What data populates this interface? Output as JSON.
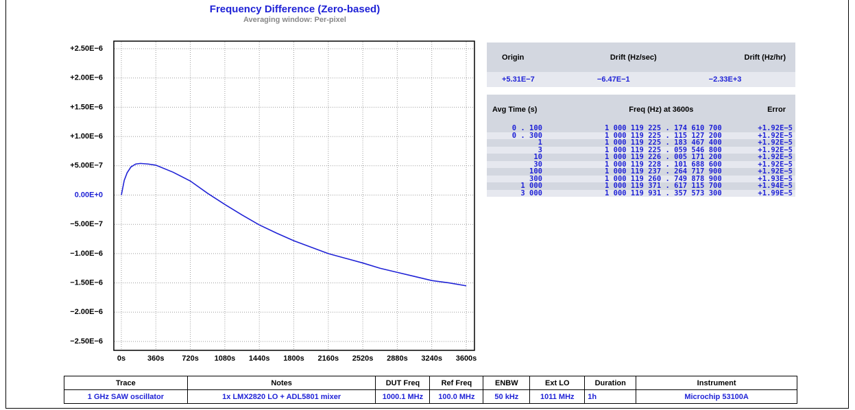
{
  "chart_data": {
    "type": "line",
    "title": "Frequency Difference (Zero-based)",
    "subtitle": "Averaging window: Per-pixel",
    "x": [
      0,
      30,
      60,
      100,
      150,
      200,
      280,
      360,
      540,
      720,
      900,
      1080,
      1260,
      1440,
      1620,
      1800,
      1980,
      2160,
      2340,
      2520,
      2700,
      2880,
      3060,
      3240,
      3420,
      3600
    ],
    "series": [
      {
        "color": "#1f22d6",
        "values": [
          0,
          2.5e-07,
          3.8e-07,
          4.8e-07,
          5.3e-07,
          5.4e-07,
          5.3e-07,
          5.1e-07,
          3.9e-07,
          2.4e-07,
          3e-08,
          -1.6e-07,
          -3.4e-07,
          -5.1e-07,
          -6.5e-07,
          -7.8e-07,
          -8.9e-07,
          -1e-06,
          -1.08e-06,
          -1.16e-06,
          -1.25e-06,
          -1.32e-06,
          -1.39e-06,
          -1.46e-06,
          -1.5e-06,
          -1.55e-06
        ]
      }
    ],
    "xlim": [
      0,
      3600
    ],
    "xticks": [
      {
        "value": 0,
        "label": "0s"
      },
      {
        "value": 360,
        "label": "360s"
      },
      {
        "value": 720,
        "label": "720s"
      },
      {
        "value": 1080,
        "label": "1080s"
      },
      {
        "value": 1440,
        "label": "1440s"
      },
      {
        "value": 1800,
        "label": "1800s"
      },
      {
        "value": 2160,
        "label": "2160s"
      },
      {
        "value": 2520,
        "label": "2520s"
      },
      {
        "value": 2880,
        "label": "2880s"
      },
      {
        "value": 3240,
        "label": "3240s"
      },
      {
        "value": 3600,
        "label": "3600s"
      }
    ],
    "ylim": [
      -2.5e-06,
      2.5e-06
    ],
    "yticks": [
      {
        "value": 2.5e-06,
        "label": "+2.50E−6"
      },
      {
        "value": 2e-06,
        "label": "+2.00E−6"
      },
      {
        "value": 1.5e-06,
        "label": "+1.50E−6"
      },
      {
        "value": 1e-06,
        "label": "+1.00E−6"
      },
      {
        "value": 5e-07,
        "label": "+5.00E−7"
      },
      {
        "value": 0,
        "label": "0.00E+0"
      },
      {
        "value": -5e-07,
        "label": "−5.00E−7"
      },
      {
        "value": -1e-06,
        "label": "−1.00E−6"
      },
      {
        "value": -1.5e-06,
        "label": "−1.50E−6"
      },
      {
        "value": -2e-06,
        "label": "−2.00E−6"
      },
      {
        "value": -2.5e-06,
        "label": "−2.50E−6"
      }
    ],
    "grid": true
  },
  "drift_table": {
    "headers": [
      "Origin",
      "Drift (Hz/sec)",
      "Drift (Hz/hr)"
    ],
    "row": [
      "+5.31E−7",
      "−6.47E−1",
      "−2.33E+3"
    ]
  },
  "avg_table": {
    "headers": [
      "Avg Time (s)",
      "Freq (Hz) at 3600s",
      "Error"
    ],
    "rows": [
      [
        "0 . 100",
        "1 000 119 225 . 174 610 700",
        "+1.92E−5"
      ],
      [
        "0 . 300",
        "1 000 119 225 . 115 127 200",
        "+1.92E−5"
      ],
      [
        "1",
        "1 000 119 225 . 183 467 400",
        "+1.92E−5"
      ],
      [
        "3",
        "1 000 119 225 . 059 546 800",
        "+1.92E−5"
      ],
      [
        "10",
        "1 000 119 226 . 005 171 200",
        "+1.92E−5"
      ],
      [
        "30",
        "1 000 119 228 . 101 688 600",
        "+1.92E−5"
      ],
      [
        "100",
        "1 000 119 237 . 264 717 900",
        "+1.92E−5"
      ],
      [
        "300",
        "1 000 119 260 . 749 878 900",
        "+1.93E−5"
      ],
      [
        "1 000",
        "1 000 119 371 . 617 115 700",
        "+1.94E−5"
      ],
      [
        "3 000",
        "1 000 119 931 . 357 573 300",
        "+1.99E−5"
      ]
    ]
  },
  "trace_table": {
    "headers": [
      "Trace",
      "Notes",
      "DUT Freq",
      "Ref Freq",
      "ENBW",
      "Ext LO",
      "Duration",
      "Instrument"
    ],
    "row": [
      "1 GHz SAW oscillator",
      "1x LMX2820 LO + ADL5801 mixer",
      "1000.1 MHz",
      "100.0 MHz",
      "50 kHz",
      "1011 MHz",
      "1h",
      "Microchip 53100A"
    ]
  }
}
